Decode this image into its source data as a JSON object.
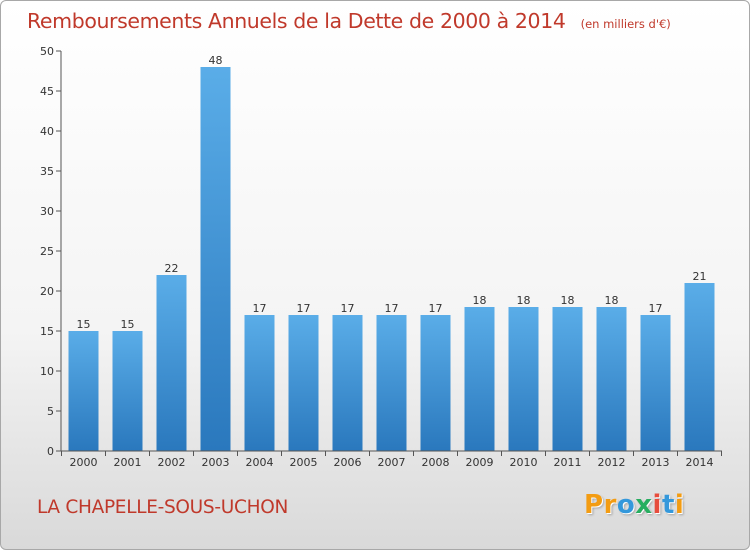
{
  "chart_data": {
    "type": "bar",
    "title": "Remboursements Annuels de la Dette de 2000 à 2014",
    "unit_note": "(en milliers d'€)",
    "categories": [
      "2000",
      "2001",
      "2002",
      "2003",
      "2004",
      "2005",
      "2006",
      "2007",
      "2008",
      "2009",
      "2010",
      "2011",
      "2012",
      "2013",
      "2014"
    ],
    "values": [
      15,
      15,
      22,
      48,
      17,
      17,
      17,
      17,
      17,
      18,
      18,
      18,
      18,
      17,
      21
    ],
    "ylim": [
      0,
      50
    ],
    "yticks": [
      0,
      5,
      10,
      15,
      20,
      25,
      30,
      35,
      40,
      45,
      50
    ],
    "xlabel": "",
    "ylabel": ""
  },
  "footer": {
    "city": "LA CHAPELLE-SOUS-UCHON",
    "logo_letters": [
      "P",
      "r",
      "o",
      "x",
      "i",
      "t",
      "i"
    ]
  },
  "colors": {
    "title": "#c0392b",
    "bar_top": "#5aade8",
    "bar_bottom": "#2a78bd",
    "axis": "#555555",
    "logo": [
      "#f39c12",
      "#f39c12",
      "#3498db",
      "#27ae60",
      "#e74c3c",
      "#3498db",
      "#f39c12"
    ]
  }
}
